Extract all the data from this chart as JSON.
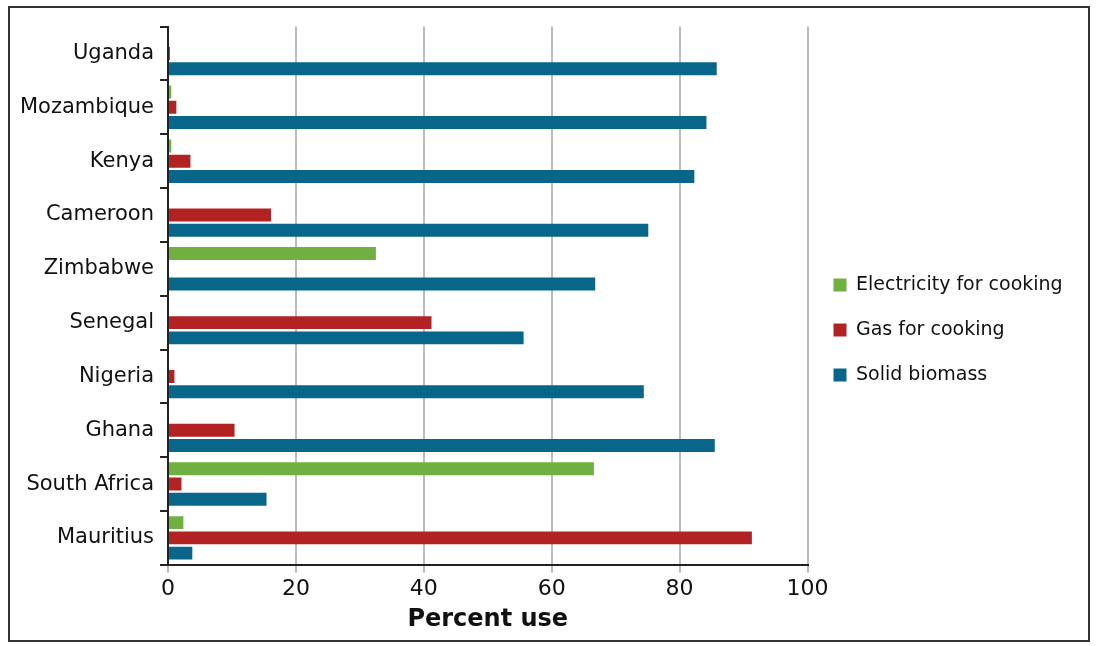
{
  "chart_data": {
    "type": "bar",
    "orientation": "horizontal",
    "xlabel": "Percent use",
    "categories": [
      "Uganda",
      "Mozambique",
      "Kenya",
      "Cameroon",
      "Zimbabwe",
      "Senegal",
      "Nigeria",
      "Ghana",
      "South Africa",
      "Mauritius"
    ],
    "series": [
      {
        "name": "Electricity for cooking",
        "color": "#70b040",
        "values": [
          0,
          0.5,
          0.5,
          0,
          32.5,
          0,
          0,
          0,
          66.6,
          2.4
        ]
      },
      {
        "name": "Gas for cooking",
        "color": "#b22222",
        "values": [
          0.3,
          1.3,
          3.5,
          16.1,
          0,
          41.2,
          1,
          10.4,
          2.1,
          91.3
        ]
      },
      {
        "name": "Solid biomass",
        "color": "#08668a",
        "values": [
          85.8,
          84.2,
          82.3,
          75.1,
          66.8,
          55.6,
          74.4,
          85.5,
          15.4,
          3.8
        ]
      }
    ],
    "xlim": [
      0,
      100
    ],
    "xticks": [
      0,
      20,
      40,
      60,
      80,
      100
    ],
    "grid": "x",
    "legend": "right"
  }
}
